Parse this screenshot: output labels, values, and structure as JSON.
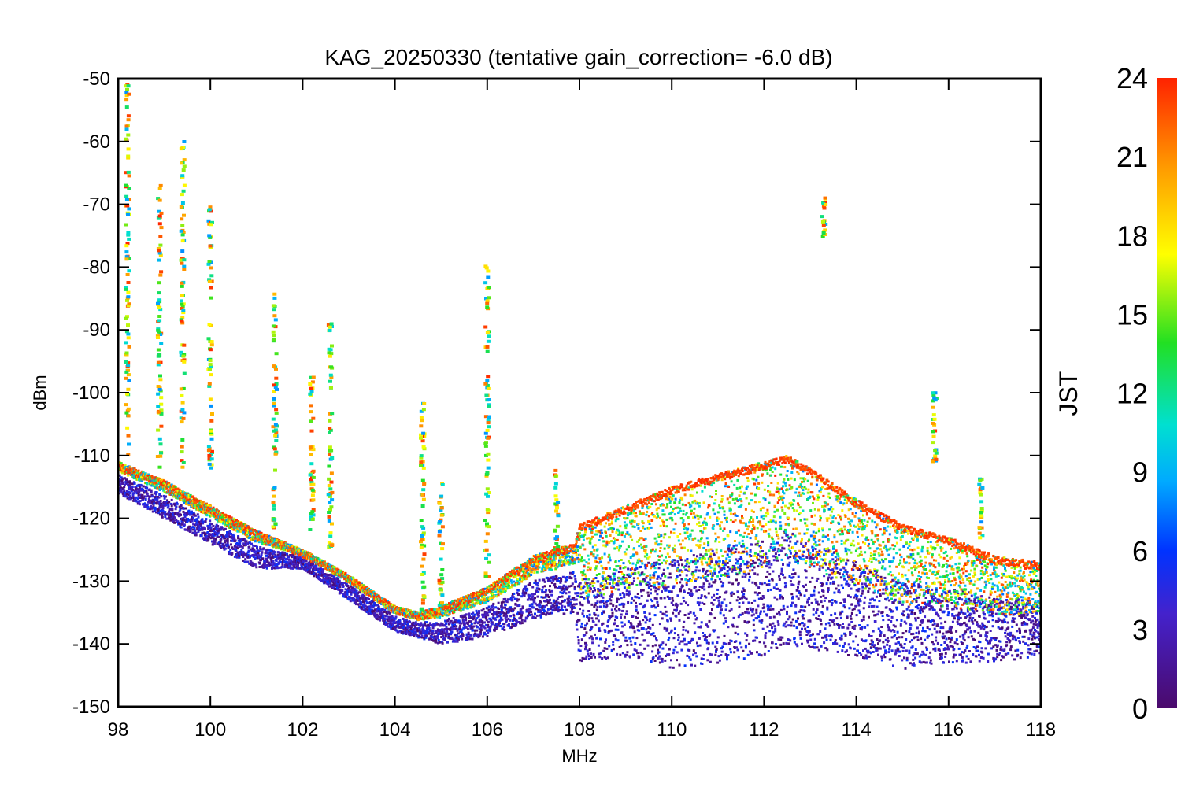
{
  "chart_data": {
    "type": "scatter",
    "title": "KAG_20250330 (tentative gain_correction= -6.0 dB)",
    "xlabel": "MHz",
    "ylabel": "dBm",
    "xlim": [
      98,
      118
    ],
    "ylim": [
      -150,
      -50
    ],
    "xticks": [
      "98",
      "100",
      "102",
      "104",
      "106",
      "108",
      "110",
      "112",
      "114",
      "116",
      "118"
    ],
    "yticks": [
      "-50",
      "-60",
      "-70",
      "-80",
      "-90",
      "-100",
      "-110",
      "-120",
      "-130",
      "-140",
      "-150"
    ],
    "colorbar": {
      "label": "JST",
      "range": [
        0,
        24
      ],
      "ticks": [
        "0",
        "3",
        "6",
        "9",
        "12",
        "15",
        "18",
        "21",
        "24"
      ],
      "colormap": "rainbow (purple to red)"
    },
    "noise_floor": {
      "frequency_mhz": [
        98,
        99,
        100,
        101,
        102,
        103,
        104,
        104.5,
        105,
        106,
        107,
        107.9,
        108,
        109,
        110,
        111,
        112,
        112.5,
        113,
        114,
        115,
        116,
        117,
        118
      ],
      "daytime_dbm": [
        -111,
        -114,
        -118,
        -122,
        -125,
        -129,
        -134,
        -135,
        -134,
        -131,
        -126,
        -124,
        -121,
        -118,
        -115,
        -113,
        -111,
        -110,
        -112,
        -117,
        -121,
        -123,
        -126,
        -127
      ],
      "night_min_dbm": [
        -116,
        -120,
        -124,
        -128,
        -128,
        -133,
        -138,
        -139,
        -140,
        -139,
        -136,
        -135,
        -143,
        -142,
        -144,
        -143,
        -142,
        -140,
        -141,
        -142,
        -144,
        -143,
        -143,
        -142
      ]
    },
    "signals": [
      {
        "frequency_mhz": 98.2,
        "top_dbm": -50,
        "bottom_dbm": -110
      },
      {
        "frequency_mhz": 98.9,
        "top_dbm": -67,
        "bottom_dbm": -112
      },
      {
        "frequency_mhz": 99.4,
        "top_dbm": -60,
        "bottom_dbm": -112
      },
      {
        "frequency_mhz": 100.0,
        "top_dbm": -70,
        "bottom_dbm": -112
      },
      {
        "frequency_mhz": 101.4,
        "top_dbm": -84,
        "bottom_dbm": -122
      },
      {
        "frequency_mhz": 102.2,
        "top_dbm": -97,
        "bottom_dbm": -123
      },
      {
        "frequency_mhz": 102.6,
        "top_dbm": -89,
        "bottom_dbm": -125
      },
      {
        "frequency_mhz": 104.6,
        "top_dbm": -100,
        "bottom_dbm": -135
      },
      {
        "frequency_mhz": 105.0,
        "top_dbm": -114,
        "bottom_dbm": -134
      },
      {
        "frequency_mhz": 106.0,
        "top_dbm": -79,
        "bottom_dbm": -130
      },
      {
        "frequency_mhz": 107.5,
        "top_dbm": -112,
        "bottom_dbm": -125
      },
      {
        "frequency_mhz": 113.3,
        "top_dbm": -69,
        "bottom_dbm": -76
      },
      {
        "frequency_mhz": 115.7,
        "top_dbm": -99,
        "bottom_dbm": -112
      },
      {
        "frequency_mhz": 116.7,
        "top_dbm": -113,
        "bottom_dbm": -124
      }
    ],
    "grid": false
  }
}
